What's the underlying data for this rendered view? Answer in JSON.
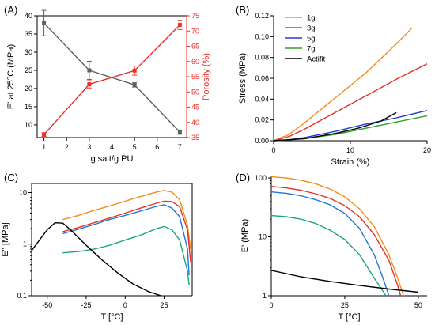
{
  "figure": {
    "background": "#ffffff",
    "axis_color": "#000000"
  },
  "chart_data": [
    {
      "id": "A",
      "panel_label": "(A)",
      "type": "line",
      "xlabel": "g salt/g PU",
      "ylabel": "E' at 25°C (MPa)",
      "ylabel_right": "Porosity (%)",
      "xlim": [
        0.7,
        7.3
      ],
      "ylim": [
        6.5,
        40
      ],
      "ylim_right": [
        35,
        75
      ],
      "x_ticks": [
        1,
        2,
        3,
        4,
        5,
        6,
        7
      ],
      "y_ticks": [
        10,
        15,
        20,
        25,
        30,
        35,
        40
      ],
      "y_ticks_right": [
        35,
        40,
        45,
        50,
        55,
        60,
        65,
        70,
        75
      ],
      "series": [
        {
          "axis": "left",
          "color": "#606060",
          "marker": "square",
          "x": [
            1,
            3,
            5,
            7
          ],
          "y": [
            38,
            25,
            21,
            8
          ],
          "err": [
            3.5,
            2.5,
            0.6,
            0.6
          ]
        },
        {
          "axis": "right",
          "color": "#e8312a",
          "marker": "square",
          "x": [
            1,
            3,
            5,
            7
          ],
          "y": [
            36,
            52.5,
            57,
            72
          ],
          "err": [
            0.6,
            1.2,
            1.5,
            1.5
          ]
        }
      ]
    },
    {
      "id": "B",
      "panel_label": "(B)",
      "type": "line",
      "xlabel": "Strain (%)",
      "ylabel": "Stress (MPa)",
      "xlim": [
        0,
        20
      ],
      "ylim": [
        0,
        0.12
      ],
      "x_ticks": [
        0,
        10,
        20
      ],
      "y_ticks": [
        0.0,
        0.02,
        0.04,
        0.06,
        0.08,
        0.1,
        0.12
      ],
      "legend_position": "top-left",
      "series": [
        {
          "name": "1g",
          "color": "#f28e1c",
          "x": [
            0,
            2,
            4,
            8,
            12,
            16,
            18
          ],
          "y": [
            0,
            0.006,
            0.017,
            0.041,
            0.065,
            0.093,
            0.108
          ]
        },
        {
          "name": "3g",
          "color": "#e8312a",
          "x": [
            0,
            2,
            4,
            8,
            12,
            16,
            20
          ],
          "y": [
            0,
            0.004,
            0.011,
            0.027,
            0.043,
            0.059,
            0.074
          ]
        },
        {
          "name": "5g",
          "color": "#1f3fd6",
          "x": [
            0,
            2,
            4,
            8,
            12,
            16,
            20
          ],
          "y": [
            0,
            0.001,
            0.003,
            0.009,
            0.016,
            0.022,
            0.029
          ]
        },
        {
          "name": "7g",
          "color": "#2ca02c",
          "x": [
            0,
            2,
            4,
            8,
            12,
            16,
            20
          ],
          "y": [
            0,
            0.0008,
            0.002,
            0.006,
            0.012,
            0.018,
            0.024
          ]
        },
        {
          "name": "Actifit",
          "color": "#000000",
          "x": [
            0,
            4,
            8,
            11,
            14,
            16
          ],
          "y": [
            0,
            0.002,
            0.007,
            0.012,
            0.019,
            0.027
          ]
        }
      ]
    },
    {
      "id": "C",
      "panel_label": "(C)",
      "type": "line",
      "xlabel": "T [°C]",
      "ylabel": "E'' [MPa]",
      "y_scale": "log",
      "xlim": [
        -60,
        43
      ],
      "ylim": [
        0.1,
        15
      ],
      "x_ticks": [
        -50,
        -25,
        0,
        25
      ],
      "y_ticks": [
        0.1,
        1,
        10
      ],
      "y_tick_labels": [
        "0.1",
        "1",
        "10"
      ],
      "series": [
        {
          "color": "#f28e1c",
          "x": [
            -40,
            -30,
            -20,
            -10,
            0,
            10,
            20,
            25,
            30,
            35,
            40,
            42
          ],
          "y": [
            3.0,
            3.6,
            4.5,
            5.5,
            6.8,
            8.4,
            10.2,
            11,
            10.2,
            7.2,
            2.3,
            0.8
          ]
        },
        {
          "color": "#e8312a",
          "x": [
            -40,
            -30,
            -20,
            -10,
            0,
            10,
            20,
            25,
            30,
            35,
            40,
            42
          ],
          "y": [
            1.75,
            2.1,
            2.6,
            3.2,
            4.0,
            5.0,
            6.2,
            6.8,
            6.7,
            5.3,
            1.9,
            0.45
          ]
        },
        {
          "color": "#1f78d4",
          "x": [
            -40,
            -30,
            -20,
            -10,
            0,
            10,
            20,
            25,
            30,
            35,
            40,
            41
          ],
          "y": [
            1.6,
            1.95,
            2.4,
            3.0,
            3.6,
            4.4,
            5.4,
            5.8,
            5.0,
            3.4,
            0.8,
            0.25
          ]
        },
        {
          "color": "#1aa87a",
          "x": [
            -40,
            -30,
            -20,
            -10,
            0,
            10,
            20,
            25,
            30,
            35,
            40,
            41
          ],
          "y": [
            0.68,
            0.72,
            0.8,
            0.95,
            1.2,
            1.5,
            2.0,
            2.2,
            1.9,
            1.2,
            0.3,
            0.16
          ]
        },
        {
          "color": "#000000",
          "x": [
            -60,
            -55,
            -50,
            -45,
            -40,
            -35,
            -25,
            -15,
            -5,
            5,
            15,
            23
          ],
          "y": [
            0.75,
            1.2,
            1.9,
            2.6,
            2.55,
            1.9,
            0.95,
            0.5,
            0.28,
            0.17,
            0.12,
            0.1
          ]
        }
      ]
    },
    {
      "id": "D",
      "panel_label": "(D)",
      "type": "line",
      "xlabel": "T [°C]",
      "ylabel": "E' (MPa)",
      "y_scale": "log",
      "xlim": [
        0,
        53
      ],
      "ylim": [
        1,
        110
      ],
      "x_ticks": [
        0,
        25,
        50
      ],
      "y_ticks": [
        1,
        10,
        100
      ],
      "y_tick_labels": [
        "1",
        "10",
        "100"
      ],
      "series": [
        {
          "color": "#f28e1c",
          "x": [
            0,
            5,
            10,
            15,
            20,
            25,
            30,
            35,
            40,
            43,
            45
          ],
          "y": [
            105,
            100,
            92,
            80,
            65,
            48,
            30,
            15,
            5,
            2,
            1
          ]
        },
        {
          "color": "#e8312a",
          "x": [
            0,
            5,
            10,
            15,
            20,
            25,
            30,
            35,
            40,
            43,
            44
          ],
          "y": [
            72,
            68,
            62,
            54,
            45,
            34,
            22,
            11,
            4,
            1.5,
            1
          ]
        },
        {
          "color": "#1f78d4",
          "x": [
            0,
            5,
            10,
            15,
            20,
            25,
            30,
            35,
            38,
            40
          ],
          "y": [
            58,
            55,
            50,
            43,
            35,
            25,
            14,
            5,
            2,
            1
          ]
        },
        {
          "color": "#1aa87a",
          "x": [
            0,
            5,
            10,
            15,
            20,
            25,
            30,
            35,
            38,
            39
          ],
          "y": [
            23,
            22,
            20,
            17,
            13,
            9,
            5,
            2,
            1.2,
            1
          ]
        },
        {
          "color": "#000000",
          "x": [
            0,
            10,
            20,
            30,
            40,
            50
          ],
          "y": [
            2.7,
            2.1,
            1.75,
            1.5,
            1.3,
            1.15
          ]
        }
      ]
    }
  ]
}
